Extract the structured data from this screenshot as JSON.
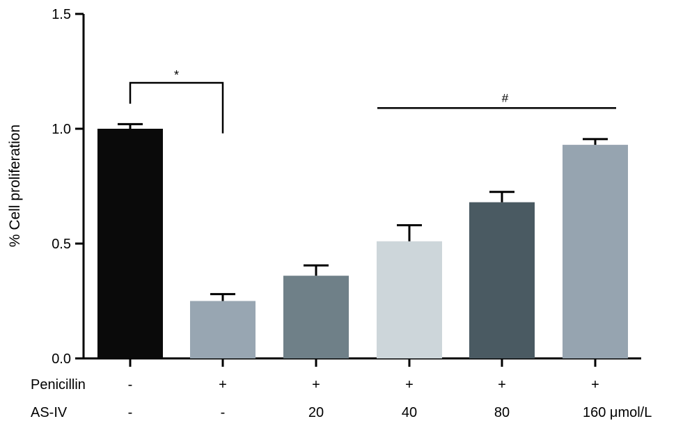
{
  "chart_data": {
    "type": "bar",
    "ylabel": "% Cell proliferation",
    "ylim": [
      0,
      1.5
    ],
    "yticks": [
      0.0,
      0.5,
      1.0,
      1.5
    ],
    "ytick_labels": [
      "0.0",
      "0.5",
      "1.0",
      "1.5"
    ],
    "grid": false,
    "bars": [
      {
        "value": 1.0,
        "error": 0.02,
        "color": "#0a0a0a"
      },
      {
        "value": 0.25,
        "error": 0.03,
        "color": "#98a6b2"
      },
      {
        "value": 0.36,
        "error": 0.045,
        "color": "#6f8088"
      },
      {
        "value": 0.51,
        "error": 0.07,
        "color": "#cdd6da"
      },
      {
        "value": 0.68,
        "error": 0.045,
        "color": "#4a5a62"
      },
      {
        "value": 0.93,
        "error": 0.025,
        "color": "#96a4b0"
      }
    ],
    "condition_rows": [
      {
        "label": "Penicillin",
        "values": [
          "-",
          "+",
          "+",
          "+",
          "+",
          "+"
        ]
      },
      {
        "label": "AS-IV",
        "values": [
          "-",
          "-",
          "20",
          "40",
          "80",
          "160 μmol/L"
        ]
      }
    ],
    "annotations": [
      {
        "type": "bracket",
        "from_bar": 0,
        "to_bar": 1,
        "y": 1.2,
        "label": "*"
      },
      {
        "type": "line",
        "from_bar": 3,
        "to_bar": 5,
        "y": 1.09,
        "label": "#"
      }
    ]
  }
}
